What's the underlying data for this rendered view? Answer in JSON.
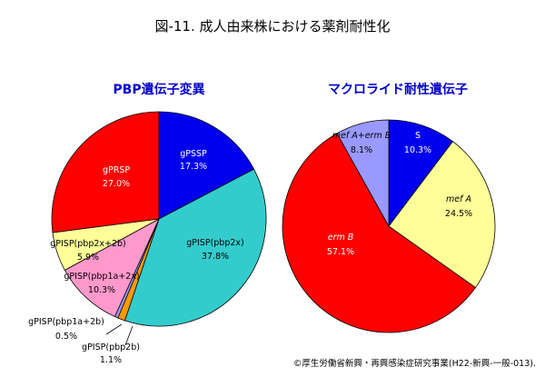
{
  "title": "図-11. 成人由来株における薬剤耐性化",
  "footer": "©厚生労働省新興・再興感染症研究事業(H22-新興-一般-013).",
  "chart_data": [
    {
      "type": "pie",
      "title": "PBP遺伝子変異",
      "slices": [
        {
          "label": "gPSSP",
          "value": 17.3,
          "color": "#0000ee"
        },
        {
          "label": "gPISP(pbp2x)",
          "value": 37.8,
          "color": "#33cccc"
        },
        {
          "label": "gPISP(pbp2b)",
          "value": 1.1,
          "color": "#ff9900"
        },
        {
          "label": "gPISP(pbp1a+2b)",
          "value": 0.5,
          "color": "#9999ff"
        },
        {
          "label": "gPISP(pbp1a+2x)",
          "value": 10.3,
          "color": "#ff99cc"
        },
        {
          "label": "gPISP(pbp2x+2b)",
          "value": 5.9,
          "color": "#ffff99"
        },
        {
          "label": "gPRSP",
          "value": 27.0,
          "color": "#ff0000"
        }
      ]
    },
    {
      "type": "pie",
      "title": "マクロライド耐性遺伝子",
      "slices": [
        {
          "label": "S",
          "value": 10.3,
          "color": "#0000ee"
        },
        {
          "label": "mef A",
          "value": 24.5,
          "color": "#ffff99"
        },
        {
          "label": "erm B",
          "value": 57.1,
          "color": "#ff0000"
        },
        {
          "label": "mef A+erm B",
          "value": 8.1,
          "color": "#9999ff"
        }
      ]
    }
  ],
  "labels": {
    "c1": [
      {
        "name": "gPSSP",
        "pct": "17.3%"
      },
      {
        "name": "gPISP(pbp2x)",
        "pct": "37.8%"
      },
      {
        "name": "gPISP(pbp2b)",
        "pct": "1.1%"
      },
      {
        "name": "gPISP(pbp1a+2b)",
        "pct": "0.5%"
      },
      {
        "name": "gPISP(pbp1a+2x)",
        "pct": "10.3%"
      },
      {
        "name": "gPISP(pbp2x+2b)",
        "pct": "5.9%"
      },
      {
        "name": "gPRSP",
        "pct": "27.0%"
      }
    ],
    "c2": [
      {
        "name": "S",
        "pct": "10.3%"
      },
      {
        "name": "mef A",
        "pct": "24.5%"
      },
      {
        "name": "erm B",
        "pct": "57.1%"
      },
      {
        "name": "mef A+erm B",
        "pct": "8.1%"
      }
    ]
  }
}
